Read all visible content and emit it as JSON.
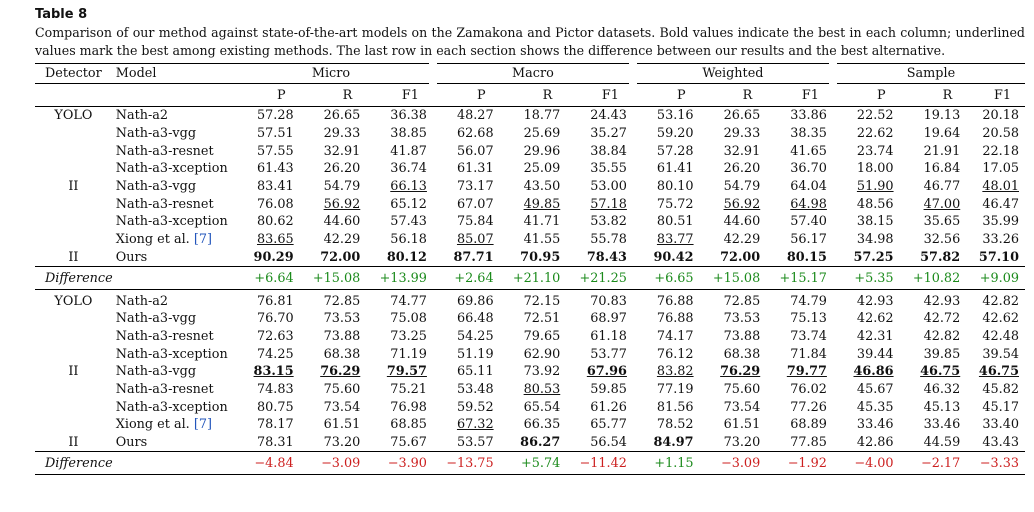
{
  "caption": {
    "title": "Table 8",
    "text": "Comparison of our method against state-of-the-art models on the Zamakona and Pictor datasets. Bold values indicate the best in each column; underlined values mark the best among existing methods. The last row in each section shows the difference between our results and the best alternative."
  },
  "header": {
    "detector": "Detector",
    "model": "Model",
    "groups": [
      "Micro",
      "Macro",
      "Weighted",
      "Sample"
    ],
    "sub": [
      "P",
      "R",
      "F1"
    ]
  },
  "colors": {
    "positive": "#1b8a1b",
    "negative": "#cc1f1f",
    "citation": "#2255bb"
  },
  "sections": [
    {
      "rows": [
        {
          "det": "YOLO",
          "model": "Nath-a2",
          "vals": [
            "57.28",
            "26.65",
            "36.38",
            "48.27",
            "18.77",
            "24.43",
            "53.16",
            "26.65",
            "33.86",
            "22.52",
            "19.13",
            "20.18"
          ]
        },
        {
          "det": "",
          "model": "Nath-a3-vgg",
          "vals": [
            "57.51",
            "29.33",
            "38.85",
            "62.68",
            "25.69",
            "35.27",
            "59.20",
            "29.33",
            "38.35",
            "22.62",
            "19.64",
            "20.58"
          ]
        },
        {
          "det": "",
          "model": "Nath-a3-resnet",
          "vals": [
            "57.55",
            "32.91",
            "41.87",
            "56.07",
            "29.96",
            "38.84",
            "57.28",
            "32.91",
            "41.65",
            "23.74",
            "21.91",
            "22.18"
          ]
        },
        {
          "det": "",
          "model": "Nath-a3-xception",
          "vals": [
            "61.43",
            "26.20",
            "36.74",
            "61.31",
            "25.09",
            "35.55",
            "61.41",
            "26.20",
            "36.70",
            "18.00",
            "16.84",
            "17.05"
          ]
        },
        {
          "det": "II",
          "model": "Nath-a3-vgg",
          "vals": [
            "83.41",
            "54.79",
            "66.13",
            "73.17",
            "43.50",
            "53.00",
            "80.10",
            "54.79",
            "64.04",
            "51.90",
            "46.77",
            "48.01"
          ],
          "ul": [
            2,
            9,
            11
          ]
        },
        {
          "det": "",
          "model": "Nath-a3-resnet",
          "vals": [
            "76.08",
            "56.92",
            "65.12",
            "67.07",
            "49.85",
            "57.18",
            "75.72",
            "56.92",
            "64.98",
            "48.56",
            "47.00",
            "46.47"
          ],
          "ul": [
            1,
            4,
            5,
            7,
            8,
            10
          ]
        },
        {
          "det": "",
          "model": "Nath-a3-xception",
          "vals": [
            "80.62",
            "44.60",
            "57.43",
            "75.84",
            "41.71",
            "53.82",
            "80.51",
            "44.60",
            "57.40",
            "38.15",
            "35.65",
            "35.99"
          ]
        },
        {
          "det": "",
          "model": "Xiong et al.",
          "cite": "[7]",
          "vals": [
            "83.65",
            "42.29",
            "56.18",
            "85.07",
            "41.55",
            "55.78",
            "83.77",
            "42.29",
            "56.17",
            "34.98",
            "32.56",
            "33.26"
          ],
          "ul": [
            0,
            3,
            6
          ]
        },
        {
          "det": "II",
          "model": "Ours",
          "vals": [
            "90.29",
            "72.00",
            "80.12",
            "87.71",
            "70.95",
            "78.43",
            "90.42",
            "72.00",
            "80.15",
            "57.25",
            "57.82",
            "57.10"
          ],
          "bold": [
            0,
            1,
            2,
            3,
            4,
            5,
            6,
            7,
            8,
            9,
            10,
            11
          ]
        }
      ],
      "difference": {
        "label": "Difference",
        "vals": [
          "+6.64",
          "+15.08",
          "+13.99",
          "+2.64",
          "+21.10",
          "+21.25",
          "+6.65",
          "+15.08",
          "+15.17",
          "+5.35",
          "+10.82",
          "+9.09"
        ]
      }
    },
    {
      "rows": [
        {
          "det": "YOLO",
          "model": "Nath-a2",
          "vals": [
            "76.81",
            "72.85",
            "74.77",
            "69.86",
            "72.15",
            "70.83",
            "76.88",
            "72.85",
            "74.79",
            "42.93",
            "42.93",
            "42.82"
          ]
        },
        {
          "det": "",
          "model": "Nath-a3-vgg",
          "vals": [
            "76.70",
            "73.53",
            "75.08",
            "66.48",
            "72.51",
            "68.97",
            "76.88",
            "73.53",
            "75.13",
            "42.62",
            "42.72",
            "42.62"
          ]
        },
        {
          "det": "",
          "model": "Nath-a3-resnet",
          "vals": [
            "72.63",
            "73.88",
            "73.25",
            "54.25",
            "79.65",
            "61.18",
            "74.17",
            "73.88",
            "73.74",
            "42.31",
            "42.82",
            "42.48"
          ]
        },
        {
          "det": "",
          "model": "Nath-a3-xception",
          "vals": [
            "74.25",
            "68.38",
            "71.19",
            "51.19",
            "62.90",
            "53.77",
            "76.12",
            "68.38",
            "71.84",
            "39.44",
            "39.85",
            "39.54"
          ]
        },
        {
          "det": "II",
          "model": "Nath-a3-vgg",
          "vals": [
            "83.15",
            "76.29",
            "79.57",
            "65.11",
            "73.92",
            "67.96",
            "83.82",
            "76.29",
            "79.77",
            "46.86",
            "46.75",
            "46.75"
          ],
          "ul": [
            0,
            1,
            2,
            5,
            6,
            7,
            8,
            9,
            10,
            11
          ],
          "bold": [
            0,
            1,
            2,
            5,
            7,
            8,
            9,
            10,
            11
          ]
        },
        {
          "det": "",
          "model": "Nath-a3-resnet",
          "vals": [
            "74.83",
            "75.60",
            "75.21",
            "53.48",
            "80.53",
            "59.85",
            "77.19",
            "75.60",
            "76.02",
            "45.67",
            "46.32",
            "45.82"
          ],
          "ul": [
            4
          ]
        },
        {
          "det": "",
          "model": "Nath-a3-xception",
          "vals": [
            "80.75",
            "73.54",
            "76.98",
            "59.52",
            "65.54",
            "61.26",
            "81.56",
            "73.54",
            "77.26",
            "45.35",
            "45.13",
            "45.17"
          ]
        },
        {
          "det": "",
          "model": "Xiong et al.",
          "cite": "[7]",
          "vals": [
            "78.17",
            "61.51",
            "68.85",
            "67.32",
            "66.35",
            "65.77",
            "78.52",
            "61.51",
            "68.89",
            "33.46",
            "33.46",
            "33.40"
          ],
          "ul": [
            3
          ]
        },
        {
          "det": "II",
          "model": "Ours",
          "vals": [
            "78.31",
            "73.20",
            "75.67",
            "53.57",
            "86.27",
            "56.54",
            "84.97",
            "73.20",
            "77.85",
            "42.86",
            "44.59",
            "43.43"
          ],
          "bold": [
            4,
            6
          ]
        }
      ],
      "difference": {
        "label": "Difference",
        "vals": [
          "−4.84",
          "−3.09",
          "−3.90",
          "−13.75",
          "+5.74",
          "−11.42",
          "+1.15",
          "−3.09",
          "−1.92",
          "−4.00",
          "−2.17",
          "−3.33"
        ]
      }
    }
  ]
}
